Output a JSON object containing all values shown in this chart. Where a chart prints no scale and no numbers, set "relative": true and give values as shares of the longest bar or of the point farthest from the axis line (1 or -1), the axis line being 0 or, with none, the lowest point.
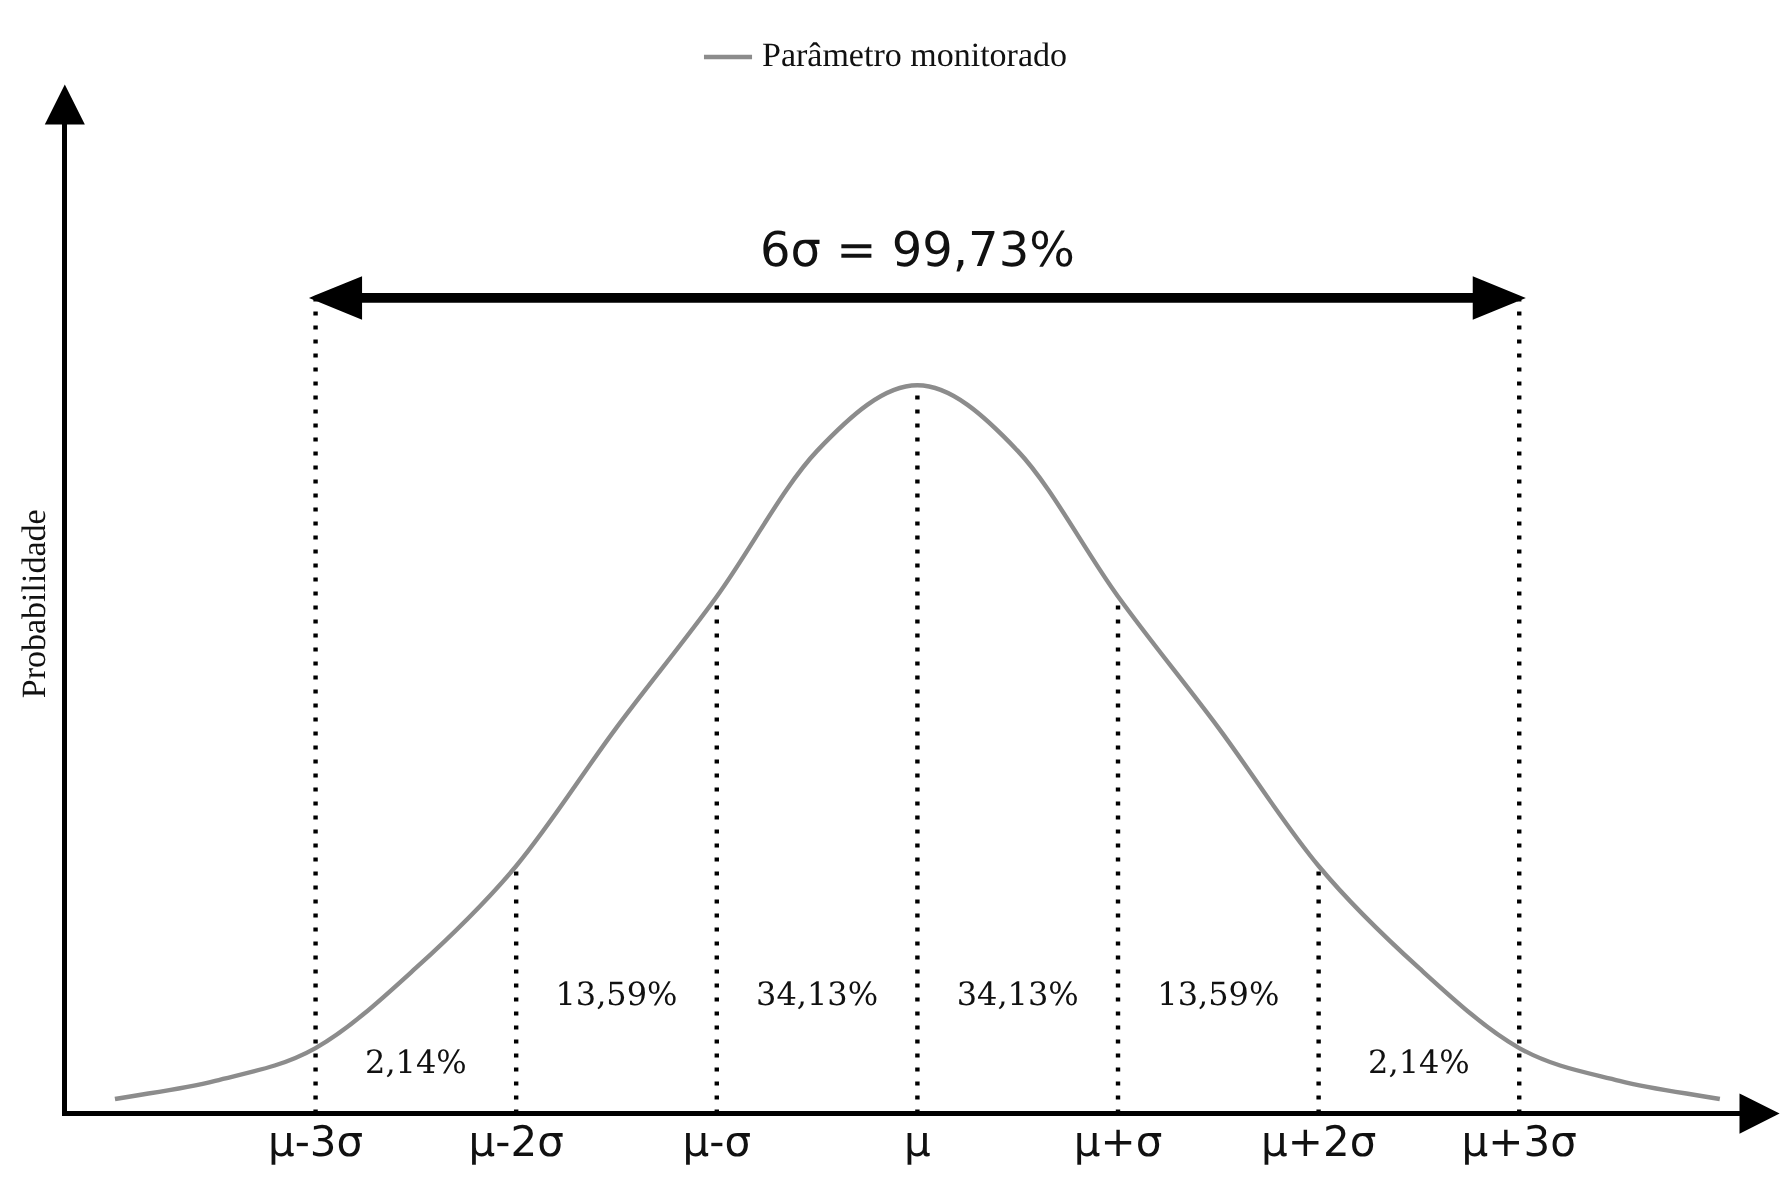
{
  "chart_data": {
    "type": "line",
    "ylabel": "Probabilidade",
    "relative": true,
    "legend": "top",
    "marker": "none",
    "line_style": "solid",
    "grid": false,
    "categories": [
      null,
      null,
      "μ-3σ",
      null,
      "μ-2σ",
      null,
      "μ-σ",
      null,
      "μ",
      null,
      "μ+σ",
      null,
      "μ+2σ",
      null,
      "μ+3σ",
      null,
      null
    ],
    "series": [
      {
        "name": "Parâmetro monitorado",
        "color": "#8c8c8c",
        "values": [
          0.02,
          0.045,
          0.09,
          0.2,
          0.34,
          0.53,
          0.71,
          0.91,
          1,
          0.91,
          0.71,
          0.53,
          0.34,
          0.2,
          0.09,
          0.045,
          0.02
        ]
      }
    ],
    "ref_lines": [
      {
        "axis": "x",
        "value": "μ-3σ",
        "color": "#000000",
        "line_style": "dotted"
      },
      {
        "axis": "x",
        "value": "μ-2σ",
        "color": "#000000",
        "line_style": "dotted"
      },
      {
        "axis": "x",
        "value": "μ-σ",
        "color": "#000000",
        "line_style": "dotted"
      },
      {
        "axis": "x",
        "value": "μ",
        "color": "#000000",
        "line_style": "dotted"
      },
      {
        "axis": "x",
        "value": "μ+σ",
        "color": "#000000",
        "line_style": "dotted"
      },
      {
        "axis": "x",
        "value": "μ+2σ",
        "color": "#000000",
        "line_style": "dotted"
      },
      {
        "axis": "x",
        "value": "μ+3σ",
        "color": "#000000",
        "line_style": "dotted"
      }
    ],
    "annotations": [
      "6σ = 99,73%",
      "2,14%",
      "13,59%",
      "34,13%",
      "34,13%",
      "13,59%",
      "2,14%"
    ]
  }
}
